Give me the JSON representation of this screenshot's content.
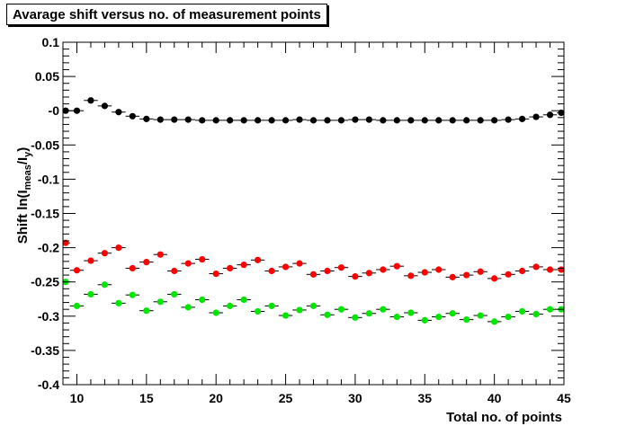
{
  "chart_data": {
    "type": "scatter",
    "title": "Avarage shift versus no. of measurement points",
    "xlabel": "Total no. of points",
    "ylabel": "Shift ln(I_meas/I_y)",
    "ylabel_parts": {
      "main": "Shift ln(I",
      "sub1": "meas",
      "mid": "/I",
      "sub2": "y",
      "end": ")"
    },
    "xlim": [
      9,
      45
    ],
    "ylim": [
      -0.4,
      0.1
    ],
    "xticks": [
      10,
      15,
      20,
      25,
      30,
      35,
      40,
      45
    ],
    "yticks": [
      {
        "v": 0.1,
        "label": "0.1"
      },
      {
        "v": 0.05,
        "label": "0.05"
      },
      {
        "v": 0,
        "label": "-0"
      },
      {
        "v": -0.05,
        "label": "-0.05"
      },
      {
        "v": -0.1,
        "label": "-0.1"
      },
      {
        "v": -0.15,
        "label": "-0.15"
      },
      {
        "v": -0.2,
        "label": "-0.2"
      },
      {
        "v": -0.25,
        "label": "-0.25"
      },
      {
        "v": -0.3,
        "label": "-0.3"
      },
      {
        "v": -0.35,
        "label": "-0.35"
      },
      {
        "v": -0.4,
        "label": "-0.4"
      }
    ],
    "grid": false,
    "series": [
      {
        "color": "#000000",
        "x": [
          9,
          10,
          11,
          12,
          13,
          14,
          15,
          16,
          17,
          18,
          19,
          20,
          21,
          22,
          23,
          24,
          25,
          26,
          27,
          28,
          29,
          30,
          31,
          32,
          33,
          34,
          35,
          36,
          37,
          38,
          39,
          40,
          41,
          42,
          43,
          44,
          45
        ],
        "y": [
          0.0,
          0.0,
          0.015,
          0.007,
          -0.002,
          -0.008,
          -0.012,
          -0.013,
          -0.013,
          -0.013,
          -0.014,
          -0.014,
          -0.014,
          -0.014,
          -0.014,
          -0.014,
          -0.014,
          -0.013,
          -0.014,
          -0.014,
          -0.014,
          -0.013,
          -0.013,
          -0.014,
          -0.014,
          -0.014,
          -0.014,
          -0.014,
          -0.014,
          -0.014,
          -0.014,
          -0.014,
          -0.013,
          -0.012,
          -0.009,
          -0.006,
          -0.003
        ]
      },
      {
        "color": "#ff0000",
        "x": [
          9,
          10,
          11,
          12,
          13,
          14,
          15,
          16,
          17,
          18,
          19,
          20,
          21,
          22,
          23,
          24,
          25,
          26,
          27,
          28,
          29,
          30,
          31,
          32,
          33,
          34,
          35,
          36,
          37,
          38,
          39,
          40,
          41,
          42,
          43,
          44,
          45
        ],
        "y": [
          -0.193,
          -0.233,
          -0.219,
          -0.208,
          -0.2,
          -0.23,
          -0.221,
          -0.21,
          -0.234,
          -0.223,
          -0.217,
          -0.238,
          -0.23,
          -0.225,
          -0.218,
          -0.234,
          -0.228,
          -0.223,
          -0.239,
          -0.234,
          -0.229,
          -0.242,
          -0.237,
          -0.232,
          -0.227,
          -0.241,
          -0.236,
          -0.232,
          -0.243,
          -0.24,
          -0.235,
          -0.245,
          -0.239,
          -0.234,
          -0.228,
          -0.232,
          -0.232
        ]
      },
      {
        "color": "#00e600",
        "x": [
          9,
          10,
          11,
          12,
          13,
          14,
          15,
          16,
          17,
          18,
          19,
          20,
          21,
          22,
          23,
          24,
          25,
          26,
          27,
          28,
          29,
          30,
          31,
          32,
          33,
          34,
          35,
          36,
          37,
          38,
          39,
          40,
          41,
          42,
          43,
          44,
          45
        ],
        "y": [
          -0.25,
          -0.285,
          -0.268,
          -0.254,
          -0.281,
          -0.269,
          -0.292,
          -0.279,
          -0.268,
          -0.287,
          -0.276,
          -0.295,
          -0.285,
          -0.276,
          -0.293,
          -0.285,
          -0.299,
          -0.291,
          -0.285,
          -0.298,
          -0.29,
          -0.302,
          -0.296,
          -0.29,
          -0.301,
          -0.295,
          -0.306,
          -0.301,
          -0.296,
          -0.305,
          -0.299,
          -0.308,
          -0.301,
          -0.293,
          -0.297,
          -0.29,
          -0.29
        ]
      }
    ]
  }
}
